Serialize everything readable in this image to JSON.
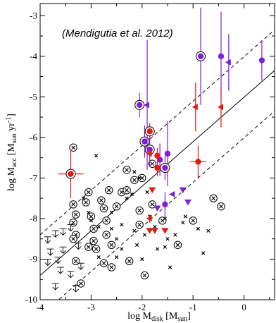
{
  "chart_data": {
    "type": "scatter",
    "annotation": "(Mendigutia et al. 2012)",
    "xlabel": {
      "main": "log M",
      "sub": "disk",
      "units_pre": " [M",
      "units_sub": "sun",
      "units_post": "]"
    },
    "ylabel": {
      "main": "log M",
      "sub": "acc",
      "units_pre": " [M",
      "units_sub": "sun",
      "units_post": " yr",
      "units_sup": "-1",
      "close": "]"
    },
    "xlim": [
      -4,
      0.6
    ],
    "ylim": [
      -10,
      -2.7
    ],
    "xticks": [
      -4,
      -3,
      -2,
      -1,
      0
    ],
    "yticks": [
      -10,
      -9,
      -8,
      -7,
      -6,
      -5,
      -4,
      -3
    ],
    "xtick_labels": [
      "-4",
      "-3",
      "-2",
      "-1",
      "0"
    ],
    "ytick_labels": [
      "-10",
      "-9",
      "-8",
      "-7",
      "-6",
      "-5",
      "-4",
      "-3"
    ],
    "grid": false,
    "colors": {
      "purple": "#7f1fd6",
      "red": "#e31b12",
      "black": "#000000"
    },
    "fit_lines": [
      {
        "style": "solid",
        "x": [
          -4,
          0.6
        ],
        "y": [
          -9.4,
          -4.35
        ]
      },
      {
        "style": "dashed",
        "x": [
          -4,
          0.6
        ],
        "y": [
          -8.4,
          -3.35
        ]
      },
      {
        "style": "dashed",
        "x": [
          -4,
          0.6
        ],
        "y": [
          -10.4,
          -5.35
        ]
      }
    ],
    "series": [
      {
        "marker": "circled-x",
        "color": "#000000",
        "points": [
          [
            -3.35,
            -6.25
          ],
          [
            -3.35,
            -7.65
          ],
          [
            -3.3,
            -7.9
          ],
          [
            -3.35,
            -8.1
          ],
          [
            -3.3,
            -8.4
          ],
          [
            -3.35,
            -8.5
          ],
          [
            -3.3,
            -9.05
          ],
          [
            -3.05,
            -8.7
          ],
          [
            -3.05,
            -7.35
          ],
          [
            -3.1,
            -7.6
          ],
          [
            -3.0,
            -7.95
          ],
          [
            -2.95,
            -8.25
          ],
          [
            -2.95,
            -8.55
          ],
          [
            -2.9,
            -8.75
          ],
          [
            -2.8,
            -7.55
          ],
          [
            -2.75,
            -7.75
          ],
          [
            -2.7,
            -8.05
          ],
          [
            -2.7,
            -8.4
          ],
          [
            -2.6,
            -8.65
          ],
          [
            -2.5,
            -7.7
          ],
          [
            -2.4,
            -7.35
          ],
          [
            -2.3,
            -7.3
          ],
          [
            -2.25,
            -9.05
          ],
          [
            -2.15,
            -7.05
          ],
          [
            -2.05,
            -7.8
          ],
          [
            -2.05,
            -8.15
          ],
          [
            -2.0,
            -7.0
          ],
          [
            -1.8,
            -6.65
          ],
          [
            -1.8,
            -7.65
          ],
          [
            -1.6,
            -8.05
          ],
          [
            -1.3,
            -8.65
          ],
          [
            -1.0,
            -8.05
          ],
          [
            -0.6,
            -7.5
          ],
          [
            -0.45,
            -7.7
          ],
          [
            -3.2,
            -9.6
          ],
          [
            -2.75,
            -9.1
          ],
          [
            -2.6,
            -9.2
          ],
          [
            -1.95,
            -9.4
          ],
          [
            -2.3,
            -6.8
          ],
          [
            -2.65,
            -7.3
          ]
        ]
      },
      {
        "marker": "cross",
        "color": "#000000",
        "points": [
          [
            -3.15,
            -7.5
          ],
          [
            -3.05,
            -7.85
          ],
          [
            -3.0,
            -8.05
          ],
          [
            -2.85,
            -8.2
          ],
          [
            -2.85,
            -8.95
          ],
          [
            -2.6,
            -7.85
          ],
          [
            -2.6,
            -8.25
          ],
          [
            -2.5,
            -8.5
          ],
          [
            -2.4,
            -8.15
          ],
          [
            -2.4,
            -8.75
          ],
          [
            -2.3,
            -7.5
          ],
          [
            -2.2,
            -7.4
          ],
          [
            -2.15,
            -8.3
          ],
          [
            -2.1,
            -8.65
          ],
          [
            -2.0,
            -9.0
          ],
          [
            -1.95,
            -8.4
          ],
          [
            -1.9,
            -7.35
          ],
          [
            -1.85,
            -7.95
          ],
          [
            -1.75,
            -8.2
          ],
          [
            -1.7,
            -8.75
          ],
          [
            -1.55,
            -8.0
          ],
          [
            -1.5,
            -8.5
          ],
          [
            -1.35,
            -8.4
          ],
          [
            -1.2,
            -8.1
          ],
          [
            -0.9,
            -8.25
          ],
          [
            -0.8,
            -8.85
          ],
          [
            -0.7,
            -8.3
          ],
          [
            -2.5,
            -8.95
          ],
          [
            -2.9,
            -6.45
          ],
          [
            -2.15,
            -6.85
          ],
          [
            -1.55,
            -8.7
          ],
          [
            -1.45,
            -9.2
          ],
          [
            -1.15,
            -7.95
          ],
          [
            -2.05,
            -7.0
          ]
        ]
      },
      {
        "marker": "upper-limit",
        "color": "#000000",
        "points": [
          [
            -3.85,
            -8.45
          ],
          [
            -3.7,
            -8.3
          ],
          [
            -3.55,
            -8.25
          ],
          [
            -3.8,
            -8.75
          ],
          [
            -3.65,
            -8.95
          ],
          [
            -3.55,
            -8.7
          ],
          [
            -3.4,
            -9.3
          ],
          [
            -3.7,
            -9.6
          ],
          [
            -3.3,
            -9.65
          ],
          [
            -3.85,
            -9.0
          ],
          [
            -3.6,
            -9.2
          ],
          [
            -3.2,
            -9.1
          ],
          [
            -3.4,
            -8.15
          ],
          [
            -3.25,
            -8.6
          ]
        ]
      },
      {
        "marker": "circle",
        "color": "#7f1fd6",
        "points": [
          [
            -0.85,
            -4.0
          ],
          [
            -0.45,
            -4.0
          ],
          [
            0.35,
            -4.1
          ],
          [
            -1.5,
            -6.4
          ],
          [
            -1.55,
            -6.75
          ],
          [
            -1.55,
            -7.65
          ],
          [
            -1.85,
            -6.3
          ],
          [
            -1.95,
            -6.1
          ],
          [
            -2.05,
            -5.2
          ],
          [
            -1.65,
            -6.55
          ]
        ],
        "yerr": [
          1.2,
          1.1,
          0.5,
          0.8,
          0.3,
          0.3,
          0.4,
          0.4,
          0.3,
          0.4
        ],
        "circled": [
          true,
          false,
          false,
          false,
          true,
          false,
          true,
          true,
          true,
          false
        ]
      },
      {
        "marker": "triangle-left",
        "color": "#7f1fd6",
        "points": [
          [
            -0.3,
            -4.15
          ],
          [
            -1.9,
            -5.2
          ],
          [
            -1.4,
            -7.4
          ]
        ],
        "yerr": [
          0.7,
          1.6,
          0.0
        ]
      },
      {
        "marker": "triangle-down",
        "color": "#7f1fd6",
        "points": [
          [
            -1.2,
            -7.3
          ],
          [
            -1.1,
            -7.6
          ],
          [
            -1.7,
            -7.75
          ]
        ],
        "yerr": [
          0,
          0,
          0
        ]
      },
      {
        "marker": "circle",
        "color": "#e31b12",
        "points": [
          [
            -3.4,
            -6.9
          ],
          [
            -1.85,
            -5.85
          ],
          [
            -0.9,
            -6.6
          ],
          [
            -1.7,
            -6.45
          ],
          [
            -1.7,
            -6.75
          ]
        ],
        "xerr": [
          0.25,
          0.1,
          0.15,
          0,
          0
        ],
        "yerr": [
          0.6,
          0.2,
          0.4,
          0.2,
          0.2
        ],
        "circled": [
          true,
          true,
          false,
          false,
          false
        ]
      },
      {
        "marker": "triangle-left",
        "color": "#e31b12",
        "points": [
          [
            -1.85,
            -6.4
          ],
          [
            -0.95,
            -5.25
          ],
          [
            -0.45,
            -5.25
          ],
          [
            -1.85,
            -8.0
          ]
        ],
        "yerr": [
          0.1,
          0.6,
          0.5,
          0.1
        ]
      },
      {
        "marker": "triangle-down",
        "color": "#e31b12",
        "points": [
          [
            -1.8,
            -7.3
          ],
          [
            -1.85,
            -8.3
          ],
          [
            -1.75,
            -8.3
          ],
          [
            -1.55,
            -8.3
          ]
        ],
        "yerr": [
          0,
          0,
          0,
          0
        ]
      }
    ]
  }
}
